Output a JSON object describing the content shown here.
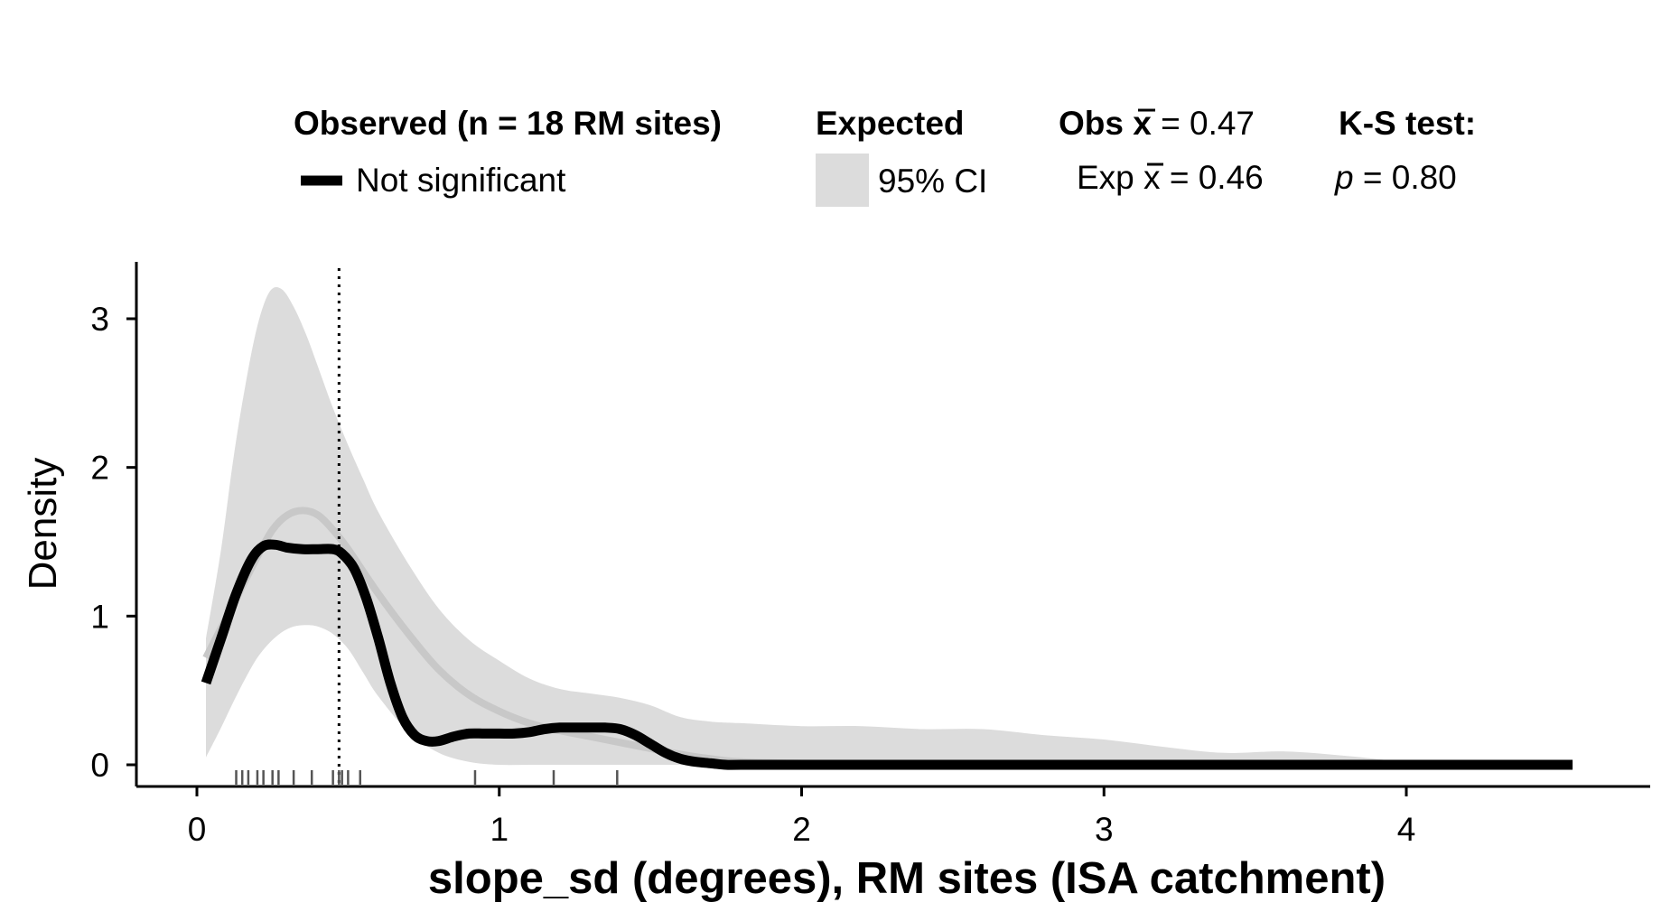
{
  "chart_data": {
    "type": "line",
    "title": "",
    "xlabel": "slope_sd (degrees), RM sites (ISA catchment)",
    "ylabel": "Density",
    "xlim": [
      -0.2,
      4.85
    ],
    "ylim": [
      -0.15,
      3.35
    ],
    "x_ticks": [
      0,
      1,
      2,
      3,
      4
    ],
    "x_tick_labels": [
      "0",
      "1",
      "2",
      "3",
      "4"
    ],
    "y_ticks": [
      0,
      1,
      2,
      3
    ],
    "y_tick_labels": [
      "0",
      "1",
      "2",
      "3"
    ],
    "grid": false,
    "legend_position": "top",
    "legend": {
      "observed_title": "Observed (n = 18 RM sites)",
      "observed_label": "Not significant",
      "expected_title": "Expected",
      "expected_label": "95% CI",
      "obs_mean_prefix": "Obs ",
      "obs_mean_symbol": "x",
      "obs_mean_value": " = 0.47",
      "exp_mean_prefix": "Exp ",
      "exp_mean_symbol": "x",
      "exp_mean_value": " = 0.46",
      "ks_title": "K-S test:",
      "ks_p_symbol": "p",
      "ks_p_value": " = 0.80"
    },
    "observed_mean": 0.47,
    "expected_mean": 0.46,
    "ks_p": 0.8,
    "series": [
      {
        "name": "Not significant",
        "role": "observed",
        "color": "#000000",
        "x": [
          0.03,
          0.08,
          0.13,
          0.18,
          0.22,
          0.26,
          0.3,
          0.35,
          0.4,
          0.45,
          0.48,
          0.52,
          0.56,
          0.6,
          0.64,
          0.68,
          0.72,
          0.76,
          0.8,
          0.85,
          0.9,
          0.95,
          1.0,
          1.05,
          1.1,
          1.15,
          1.2,
          1.25,
          1.3,
          1.35,
          1.4,
          1.45,
          1.5,
          1.55,
          1.6,
          1.65,
          1.7,
          1.75,
          1.8,
          2.0,
          2.5,
          3.0,
          3.5,
          4.0,
          4.55
        ],
        "values": [
          0.55,
          0.85,
          1.15,
          1.38,
          1.47,
          1.48,
          1.46,
          1.45,
          1.45,
          1.45,
          1.42,
          1.32,
          1.12,
          0.85,
          0.55,
          0.32,
          0.2,
          0.16,
          0.16,
          0.19,
          0.21,
          0.21,
          0.21,
          0.21,
          0.22,
          0.24,
          0.25,
          0.25,
          0.25,
          0.25,
          0.24,
          0.2,
          0.14,
          0.08,
          0.04,
          0.02,
          0.01,
          0.0,
          0.0,
          0.0,
          0.0,
          0.0,
          0.0,
          0.0,
          0.0
        ]
      },
      {
        "name": "",
        "role": "expected-mean",
        "color": "#c8c8c8",
        "x": [
          0.03,
          0.1,
          0.15,
          0.2,
          0.25,
          0.3,
          0.35,
          0.4,
          0.45,
          0.5,
          0.6,
          0.7,
          0.8,
          0.9,
          1.0,
          1.1,
          1.2,
          1.3,
          1.4,
          1.5,
          1.6,
          1.7,
          1.8,
          2.0,
          2.5,
          3.0,
          3.5,
          4.0,
          4.5
        ],
        "values": [
          0.72,
          1.0,
          1.2,
          1.4,
          1.58,
          1.68,
          1.71,
          1.68,
          1.58,
          1.45,
          1.15,
          0.88,
          0.64,
          0.47,
          0.36,
          0.28,
          0.23,
          0.19,
          0.15,
          0.11,
          0.07,
          0.04,
          0.02,
          0.01,
          0.0,
          0.0,
          0.0,
          0.0,
          0.0
        ]
      }
    ],
    "ci_band": {
      "name": "95% CI",
      "color": "#dcdcdc",
      "x": [
        0.03,
        0.08,
        0.12,
        0.16,
        0.2,
        0.24,
        0.28,
        0.32,
        0.36,
        0.4,
        0.45,
        0.5,
        0.55,
        0.6,
        0.7,
        0.8,
        0.9,
        1.0,
        1.1,
        1.2,
        1.3,
        1.4,
        1.5,
        1.6,
        1.7,
        1.8,
        2.0,
        2.2,
        2.4,
        2.6,
        2.8,
        3.0,
        3.2,
        3.4,
        3.6,
        3.8,
        4.0,
        4.2
      ],
      "lower": [
        0.05,
        0.25,
        0.42,
        0.58,
        0.72,
        0.82,
        0.89,
        0.93,
        0.94,
        0.93,
        0.88,
        0.78,
        0.62,
        0.46,
        0.22,
        0.08,
        0.02,
        0.0,
        0.0,
        0.0,
        0.0,
        0.0,
        0.0,
        0.0,
        0.0,
        0.0,
        0.0,
        0.0,
        0.0,
        0.0,
        0.0,
        0.0,
        0.0,
        0.0,
        0.0,
        0.0,
        0.0,
        0.0
      ],
      "upper": [
        0.85,
        1.45,
        2.05,
        2.55,
        2.95,
        3.18,
        3.2,
        3.08,
        2.9,
        2.68,
        2.4,
        2.15,
        1.92,
        1.7,
        1.35,
        1.05,
        0.84,
        0.7,
        0.58,
        0.51,
        0.48,
        0.45,
        0.4,
        0.32,
        0.29,
        0.28,
        0.26,
        0.26,
        0.24,
        0.24,
        0.2,
        0.17,
        0.12,
        0.08,
        0.09,
        0.06,
        0.02,
        0.0
      ]
    },
    "rug_x": [
      0.13,
      0.15,
      0.17,
      0.2,
      0.22,
      0.25,
      0.27,
      0.32,
      0.38,
      0.45,
      0.47,
      0.48,
      0.5,
      0.54,
      0.92,
      1.18,
      1.39
    ]
  }
}
